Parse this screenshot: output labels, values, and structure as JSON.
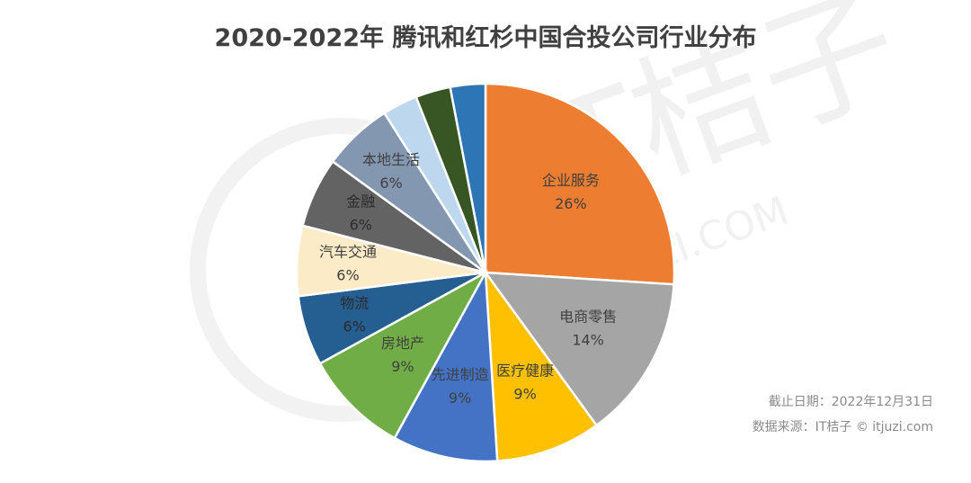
{
  "chart_data": {
    "type": "pie",
    "title": "2020-2022年 腾讯和红杉中国合投公司行业分布",
    "slices": [
      {
        "label": "企业服务",
        "value": 26,
        "value_label": "26%",
        "color": "#ED7D31"
      },
      {
        "label": "电商零售",
        "value": 14,
        "value_label": "14%",
        "color": "#A5A5A5"
      },
      {
        "label": "医疗健康",
        "value": 9,
        "value_label": "9%",
        "color": "#FFC000"
      },
      {
        "label": "先进制造",
        "value": 9,
        "value_label": "9%",
        "color": "#4472C4"
      },
      {
        "label": "房地产",
        "value": 9,
        "value_label": "9%",
        "color": "#70AD47"
      },
      {
        "label": "物流",
        "value": 6,
        "value_label": "6%",
        "color": "#255E91"
      },
      {
        "label": "汽车交通",
        "value": 6,
        "value_label": "6%",
        "color": "#FBEBC6"
      },
      {
        "label": "金融",
        "value": 6,
        "value_label": "6%",
        "color": "#636363"
      },
      {
        "label": "本地生活",
        "value": 6,
        "value_label": "6%",
        "color": "#8497B0"
      },
      {
        "label": "",
        "value": 3,
        "value_label": "",
        "color": "#BDD7EE"
      },
      {
        "label": "",
        "value": 3,
        "value_label": "",
        "color": "#375623"
      },
      {
        "label": "",
        "value": 3,
        "value_label": "",
        "color": "#2E75B6"
      }
    ]
  },
  "footer": {
    "date": "截止日期：2022年12月31日",
    "source": "数据来源：IT桔子 © itjuzi.com"
  },
  "watermark": {
    "brand": "IT桔子",
    "domain": "ITJUZI.COM"
  }
}
